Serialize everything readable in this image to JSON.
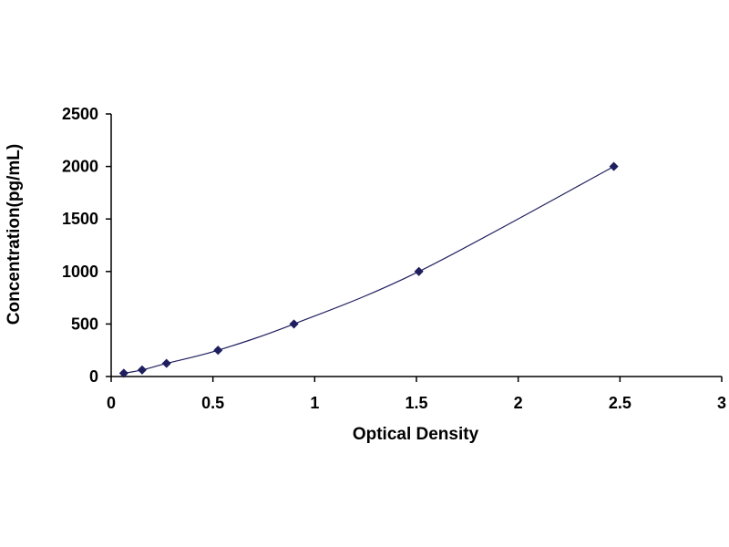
{
  "chart_data": {
    "type": "scatter",
    "title": "",
    "xlabel": "Optical Density",
    "ylabel": "Concentration(pg/mL)",
    "xlim": [
      0,
      3
    ],
    "ylim": [
      0,
      2500
    ],
    "x_ticks": [
      "0",
      "0.5",
      "1",
      "1.5",
      "2",
      "2.5",
      "3"
    ],
    "y_ticks": [
      "0",
      "500",
      "1000",
      "1500",
      "2000",
      "2500"
    ],
    "grid": false,
    "legend": "none",
    "trendline": "smooth-curve",
    "colors": {
      "marker": "#1f1f5f",
      "curve": "#1f1f5f",
      "axis": "#000000"
    },
    "points": [
      {
        "x": 0.062,
        "y": 31.25
      },
      {
        "x": 0.152,
        "y": 62.5
      },
      {
        "x": 0.272,
        "y": 125
      },
      {
        "x": 0.525,
        "y": 250
      },
      {
        "x": 0.898,
        "y": 500
      },
      {
        "x": 1.512,
        "y": 1000
      },
      {
        "x": 2.47,
        "y": 2000
      }
    ]
  }
}
